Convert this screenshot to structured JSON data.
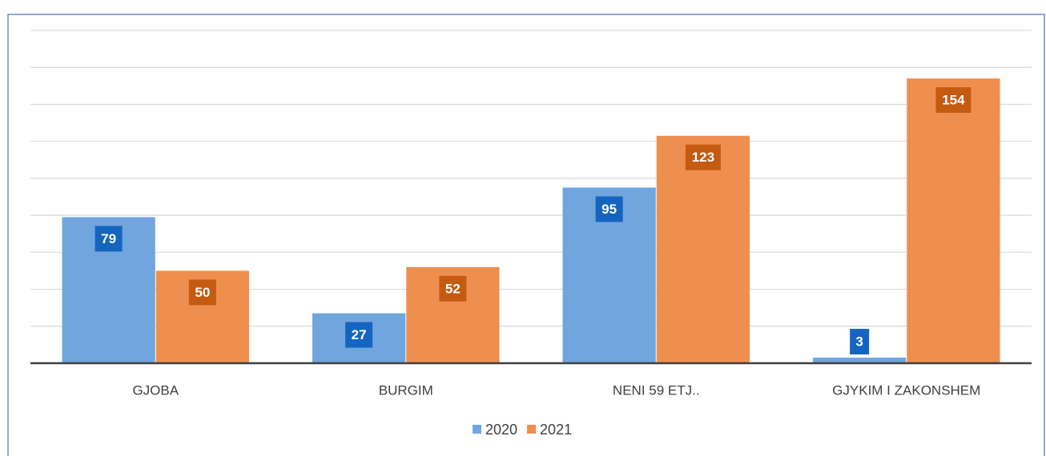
{
  "chart_data": {
    "type": "bar",
    "categories": [
      "GJOBA",
      "BURGIM",
      "NENI 59 ETJ..",
      "GJYKIM I ZAKONSHEM"
    ],
    "series": [
      {
        "name": "2020",
        "color": "#71a5dd",
        "label_color": "#1565c0",
        "values": [
          79,
          27,
          95,
          3
        ]
      },
      {
        "name": "2021",
        "color": "#ef8f4f",
        "label_color": "#c55a11",
        "values": [
          50,
          52,
          123,
          154
        ]
      }
    ],
    "ylim": [
      0,
      180
    ],
    "yticks": [
      0,
      20,
      40,
      60,
      80,
      100,
      120,
      140,
      160,
      180
    ],
    "grid": true,
    "legend": "bottom"
  }
}
